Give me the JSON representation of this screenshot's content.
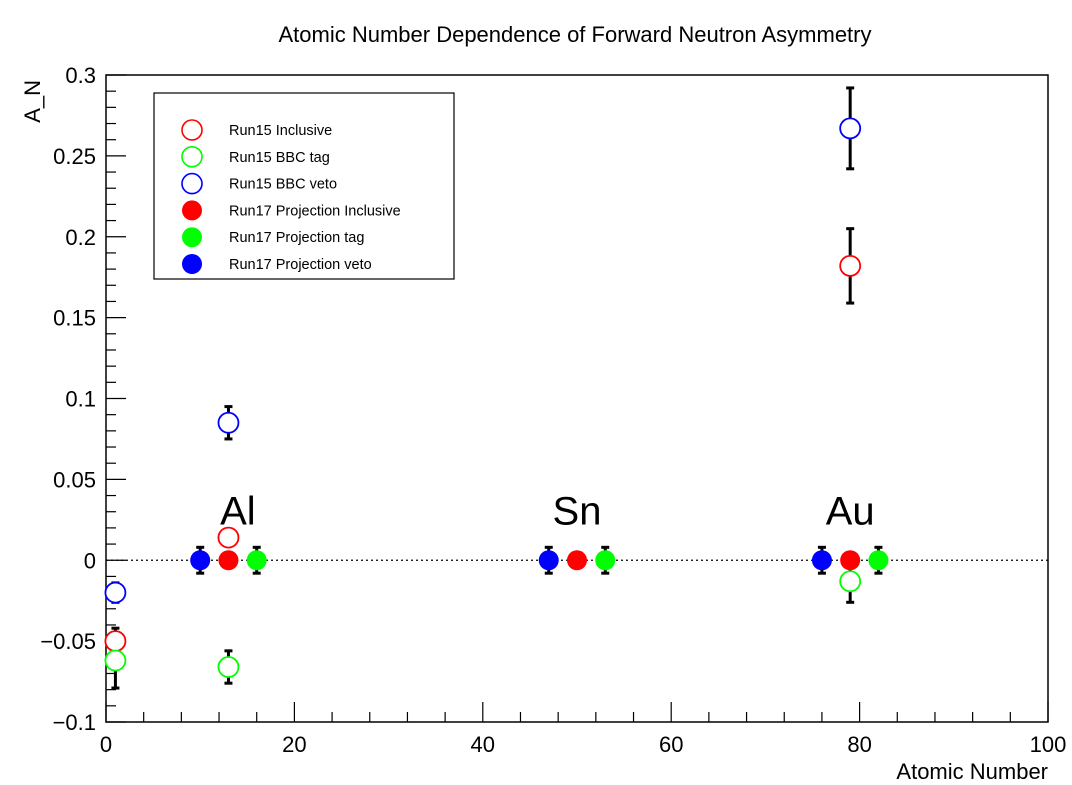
{
  "chart_data": {
    "type": "scatter",
    "title": "Atomic Number Dependence of Forward Neutron Asymmetry",
    "xlabel": "Atomic Number",
    "ylabel": "A_N",
    "xlim": [
      0,
      100
    ],
    "ylim": [
      -0.1,
      0.3
    ],
    "xticks": [
      "0",
      "20",
      "40",
      "60",
      "80",
      "100"
    ],
    "yticks": [
      "−0.1",
      "−0.05",
      "0",
      "0.05",
      "0.1",
      "0.15",
      "0.2",
      "0.25",
      "0.3"
    ],
    "grid": false,
    "zero_line": true,
    "legend_position": "top-left",
    "annotations": [
      {
        "text": "Al",
        "x": 14,
        "y": 0.022
      },
      {
        "text": "Sn",
        "x": 50,
        "y": 0.022
      },
      {
        "text": "Au",
        "x": 79,
        "y": 0.022
      }
    ],
    "series": [
      {
        "name": "Run15 Inclusive",
        "color": "#ff0000",
        "marker": "open-circle",
        "points": [
          {
            "x": 1,
            "y": -0.05,
            "err": 0.008
          },
          {
            "x": 13,
            "y": 0.014,
            "err": 0
          },
          {
            "x": 79,
            "y": 0.182,
            "err": 0.023
          }
        ]
      },
      {
        "name": "Run15 BBC tag",
        "color": "#00ff00",
        "marker": "open-circle",
        "points": [
          {
            "x": 1,
            "y": -0.062,
            "err": 0.017
          },
          {
            "x": 13,
            "y": -0.066,
            "err": 0.01
          },
          {
            "x": 79,
            "y": -0.013,
            "err": 0.013
          }
        ]
      },
      {
        "name": "Run15 BBC veto",
        "color": "#0000ff",
        "marker": "open-circle",
        "points": [
          {
            "x": 1,
            "y": -0.02,
            "err": 0.006
          },
          {
            "x": 13,
            "y": 0.085,
            "err": 0.01
          },
          {
            "x": 79,
            "y": 0.267,
            "err": 0.025
          }
        ]
      },
      {
        "name": "Run17 Projection Inclusive",
        "color": "#ff0000",
        "marker": "filled-circle",
        "points": [
          {
            "x": 13,
            "y": 0,
            "err": 0
          },
          {
            "x": 50,
            "y": 0,
            "err": 0
          },
          {
            "x": 79,
            "y": 0,
            "err": 0
          }
        ]
      },
      {
        "name": "Run17 Projection tag",
        "color": "#00ff00",
        "marker": "filled-circle",
        "points": [
          {
            "x": 16,
            "y": 0,
            "err": 0.008
          },
          {
            "x": 53,
            "y": 0,
            "err": 0.008
          },
          {
            "x": 82,
            "y": 0,
            "err": 0.008
          }
        ]
      },
      {
        "name": "Run17 Projection veto",
        "color": "#0000ff",
        "marker": "filled-circle",
        "points": [
          {
            "x": 10,
            "y": 0,
            "err": 0.008
          },
          {
            "x": 47,
            "y": 0,
            "err": 0.008
          },
          {
            "x": 76,
            "y": 0,
            "err": 0.008
          }
        ]
      }
    ]
  }
}
